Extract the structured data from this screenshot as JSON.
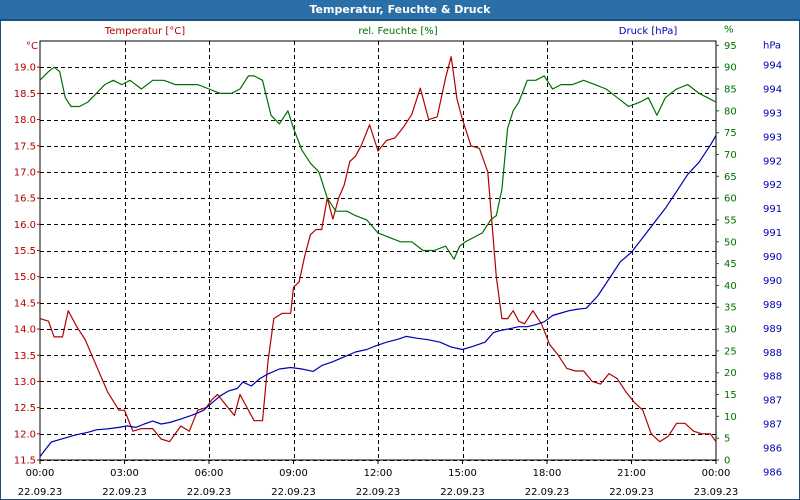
{
  "window": {
    "title": "Temperatur, Feuchte & Druck"
  },
  "colors": {
    "temperature": "#b00000",
    "humidity": "#007000",
    "pressure": "#0000b0",
    "grid": "#000000",
    "frame": "#1e4f7e",
    "background": "#ffffff"
  },
  "chart_data": {
    "type": "line",
    "title": "Temperatur, Feuchte & Druck",
    "x_ticks": [
      {
        "time": "00:00",
        "date": "22.09.23"
      },
      {
        "time": "03:00",
        "date": "22.09.23"
      },
      {
        "time": "06:00",
        "date": "22.09.23"
      },
      {
        "time": "09:00",
        "date": "22.09.23"
      },
      {
        "time": "12:00",
        "date": "22.09.23"
      },
      {
        "time": "15:00",
        "date": "22.09.23"
      },
      {
        "time": "18:00",
        "date": "22.09.23"
      },
      {
        "time": "21:00",
        "date": "22.09.23"
      },
      {
        "time": "00:00",
        "date": "23.09.23"
      }
    ],
    "x_range_hours": [
      0,
      24
    ],
    "axes": {
      "left": {
        "label": "Temperatur [°C]",
        "unit": "°C",
        "range": [
          11.5,
          19.5
        ],
        "ticks": [
          "11.5",
          "12.0",
          "12.5",
          "13.0",
          "13.5",
          "14.0",
          "14.5",
          "15.0",
          "15.5",
          "16.0",
          "16.5",
          "17.0",
          "17.5",
          "18.0",
          "18.5",
          "19.0"
        ]
      },
      "right1": {
        "label": "rel. Feuchte [%]",
        "unit": "%",
        "range": [
          0,
          96
        ],
        "ticks": [
          "0",
          "5",
          "10",
          "15",
          "20",
          "25",
          "30",
          "35",
          "40",
          "45",
          "50",
          "55",
          "60",
          "65",
          "70",
          "75",
          "80",
          "85",
          "90",
          "95",
          "%"
        ]
      },
      "right2": {
        "label": "Druck [hPa]",
        "unit": "hPa",
        "range": [
          985.88,
          994.49
        ],
        "ticks": [
          "986",
          "986",
          "987",
          "987",
          "988",
          "988",
          "989",
          "989",
          "990",
          "990",
          "991",
          "991",
          "992",
          "992",
          "993",
          "993",
          "994",
          "994",
          "hPa"
        ]
      }
    },
    "series": [
      {
        "name": "Temperatur [°C]",
        "axis": "left",
        "color": "#b00000",
        "x": [
          0,
          0.3,
          0.5,
          0.8,
          1.0,
          1.3,
          1.6,
          2.0,
          2.4,
          2.8,
          3.0,
          3.3,
          3.6,
          4.0,
          4.3,
          4.6,
          5.0,
          5.3,
          5.6,
          5.9,
          6.1,
          6.3,
          6.6,
          6.9,
          7.1,
          7.3,
          7.6,
          7.9,
          8.1,
          8.3,
          8.6,
          8.9,
          9.0,
          9.2,
          9.4,
          9.6,
          9.8,
          10.0,
          10.2,
          10.4,
          10.6,
          10.8,
          11.0,
          11.2,
          11.4,
          11.7,
          12.0,
          12.3,
          12.6,
          12.9,
          13.2,
          13.5,
          13.8,
          14.1,
          14.4,
          14.6,
          14.8,
          15.0,
          15.3,
          15.6,
          15.9,
          16.2,
          16.4,
          16.6,
          16.8,
          17.0,
          17.2,
          17.5,
          17.8,
          18.1,
          18.4,
          18.7,
          19.0,
          19.3,
          19.6,
          19.9,
          20.2,
          20.5,
          20.8,
          21.1,
          21.4,
          21.7,
          22.0,
          22.3,
          22.6,
          22.9,
          23.2,
          23.5,
          23.8,
          24.0
        ],
        "values": [
          14.2,
          14.15,
          13.85,
          13.85,
          14.35,
          14.05,
          13.8,
          13.3,
          12.8,
          12.45,
          12.45,
          12.05,
          12.1,
          12.1,
          11.9,
          11.85,
          12.15,
          12.05,
          12.45,
          12.5,
          12.65,
          12.75,
          12.55,
          12.35,
          12.75,
          12.55,
          12.25,
          12.25,
          13.4,
          14.2,
          14.3,
          14.3,
          14.8,
          14.9,
          15.4,
          15.8,
          15.9,
          15.9,
          16.5,
          16.1,
          16.5,
          16.75,
          17.2,
          17.3,
          17.5,
          17.9,
          17.4,
          17.6,
          17.65,
          17.85,
          18.1,
          18.6,
          18.0,
          18.05,
          18.8,
          19.2,
          18.4,
          18.0,
          17.5,
          17.45,
          17.0,
          15.0,
          14.2,
          14.2,
          14.35,
          14.15,
          14.1,
          14.35,
          14.1,
          13.7,
          13.5,
          13.25,
          13.2,
          13.2,
          13.0,
          12.95,
          13.15,
          13.05,
          12.8,
          12.6,
          12.45,
          12.0,
          11.85,
          11.95,
          12.2,
          12.2,
          12.05,
          12.0,
          12.0,
          11.85
        ]
      },
      {
        "name": "rel. Feuchte [%]",
        "axis": "right1",
        "color": "#007000",
        "x": [
          0,
          0.3,
          0.5,
          0.7,
          0.9,
          1.1,
          1.4,
          1.7,
          2.0,
          2.3,
          2.6,
          2.9,
          3.2,
          3.6,
          4.0,
          4.4,
          4.8,
          5.2,
          5.6,
          6.0,
          6.4,
          6.8,
          7.1,
          7.4,
          7.6,
          7.9,
          8.2,
          8.5,
          8.8,
          9.0,
          9.3,
          9.6,
          9.9,
          10.2,
          10.5,
          10.9,
          11.2,
          11.6,
          12.0,
          12.4,
          12.8,
          13.2,
          13.6,
          14.0,
          14.4,
          14.7,
          14.9,
          15.1,
          15.4,
          15.7,
          16.0,
          16.2,
          16.4,
          16.6,
          16.8,
          17.0,
          17.3,
          17.6,
          17.9,
          18.2,
          18.5,
          18.9,
          19.3,
          19.7,
          20.1,
          20.5,
          20.9,
          21.3,
          21.6,
          21.9,
          22.2,
          22.6,
          23.0,
          23.4,
          23.7,
          24.0
        ],
        "values": [
          87,
          89,
          90,
          89,
          83,
          81,
          81,
          82,
          84,
          86,
          87,
          86,
          87,
          85,
          87,
          87,
          86,
          86,
          86,
          85,
          84,
          84,
          85,
          88,
          88,
          87,
          79,
          77,
          80,
          76,
          71,
          68,
          66,
          60,
          57,
          57,
          56,
          55,
          52,
          51,
          50,
          50,
          48,
          48,
          49,
          46,
          49,
          50,
          51,
          52,
          55,
          56,
          62,
          76,
          80,
          82,
          87,
          87,
          88,
          85,
          86,
          86,
          87,
          86,
          85,
          83,
          81,
          82,
          83,
          79,
          83,
          85,
          86,
          84,
          83,
          82
        ]
      },
      {
        "name": "Druck [hPa]",
        "axis": "right2",
        "color": "#0000b0",
        "x": [
          0,
          0.2,
          0.4,
          0.7,
          1.0,
          1.3,
          1.7,
          2.0,
          2.4,
          2.8,
          3.1,
          3.4,
          3.7,
          4.0,
          4.3,
          4.6,
          5.0,
          5.4,
          5.8,
          6.1,
          6.4,
          6.7,
          7.0,
          7.2,
          7.5,
          7.8,
          8.1,
          8.5,
          8.9,
          9.3,
          9.7,
          10.0,
          10.4,
          10.8,
          11.2,
          11.6,
          11.9,
          12.3,
          12.7,
          13.0,
          13.4,
          13.8,
          14.2,
          14.6,
          15.0,
          15.4,
          15.8,
          16.1,
          16.4,
          16.7,
          17.0,
          17.3,
          17.6,
          17.9,
          18.2,
          18.5,
          18.8,
          19.1,
          19.4,
          19.8,
          20.2,
          20.6,
          21.0,
          21.4,
          21.8,
          22.2,
          22.6,
          23.0,
          23.4,
          23.8,
          24.0
        ],
        "values": [
          985.95,
          986.1,
          986.25,
          986.3,
          986.35,
          986.4,
          986.45,
          986.5,
          986.52,
          986.55,
          986.58,
          986.55,
          986.62,
          986.68,
          986.62,
          986.65,
          986.72,
          986.8,
          986.9,
          987.05,
          987.2,
          987.3,
          987.35,
          987.48,
          987.4,
          987.55,
          987.65,
          987.75,
          987.78,
          987.75,
          987.7,
          987.82,
          987.9,
          988.0,
          988.1,
          988.15,
          988.22,
          988.3,
          988.36,
          988.42,
          988.38,
          988.35,
          988.3,
          988.2,
          988.15,
          988.22,
          988.3,
          988.5,
          988.55,
          988.58,
          988.62,
          988.62,
          988.66,
          988.72,
          988.85,
          988.9,
          988.95,
          988.98,
          989.0,
          989.25,
          989.6,
          989.95,
          990.15,
          990.45,
          990.75,
          991.05,
          991.4,
          991.75,
          992.0,
          992.35,
          992.55
        ]
      }
    ]
  }
}
